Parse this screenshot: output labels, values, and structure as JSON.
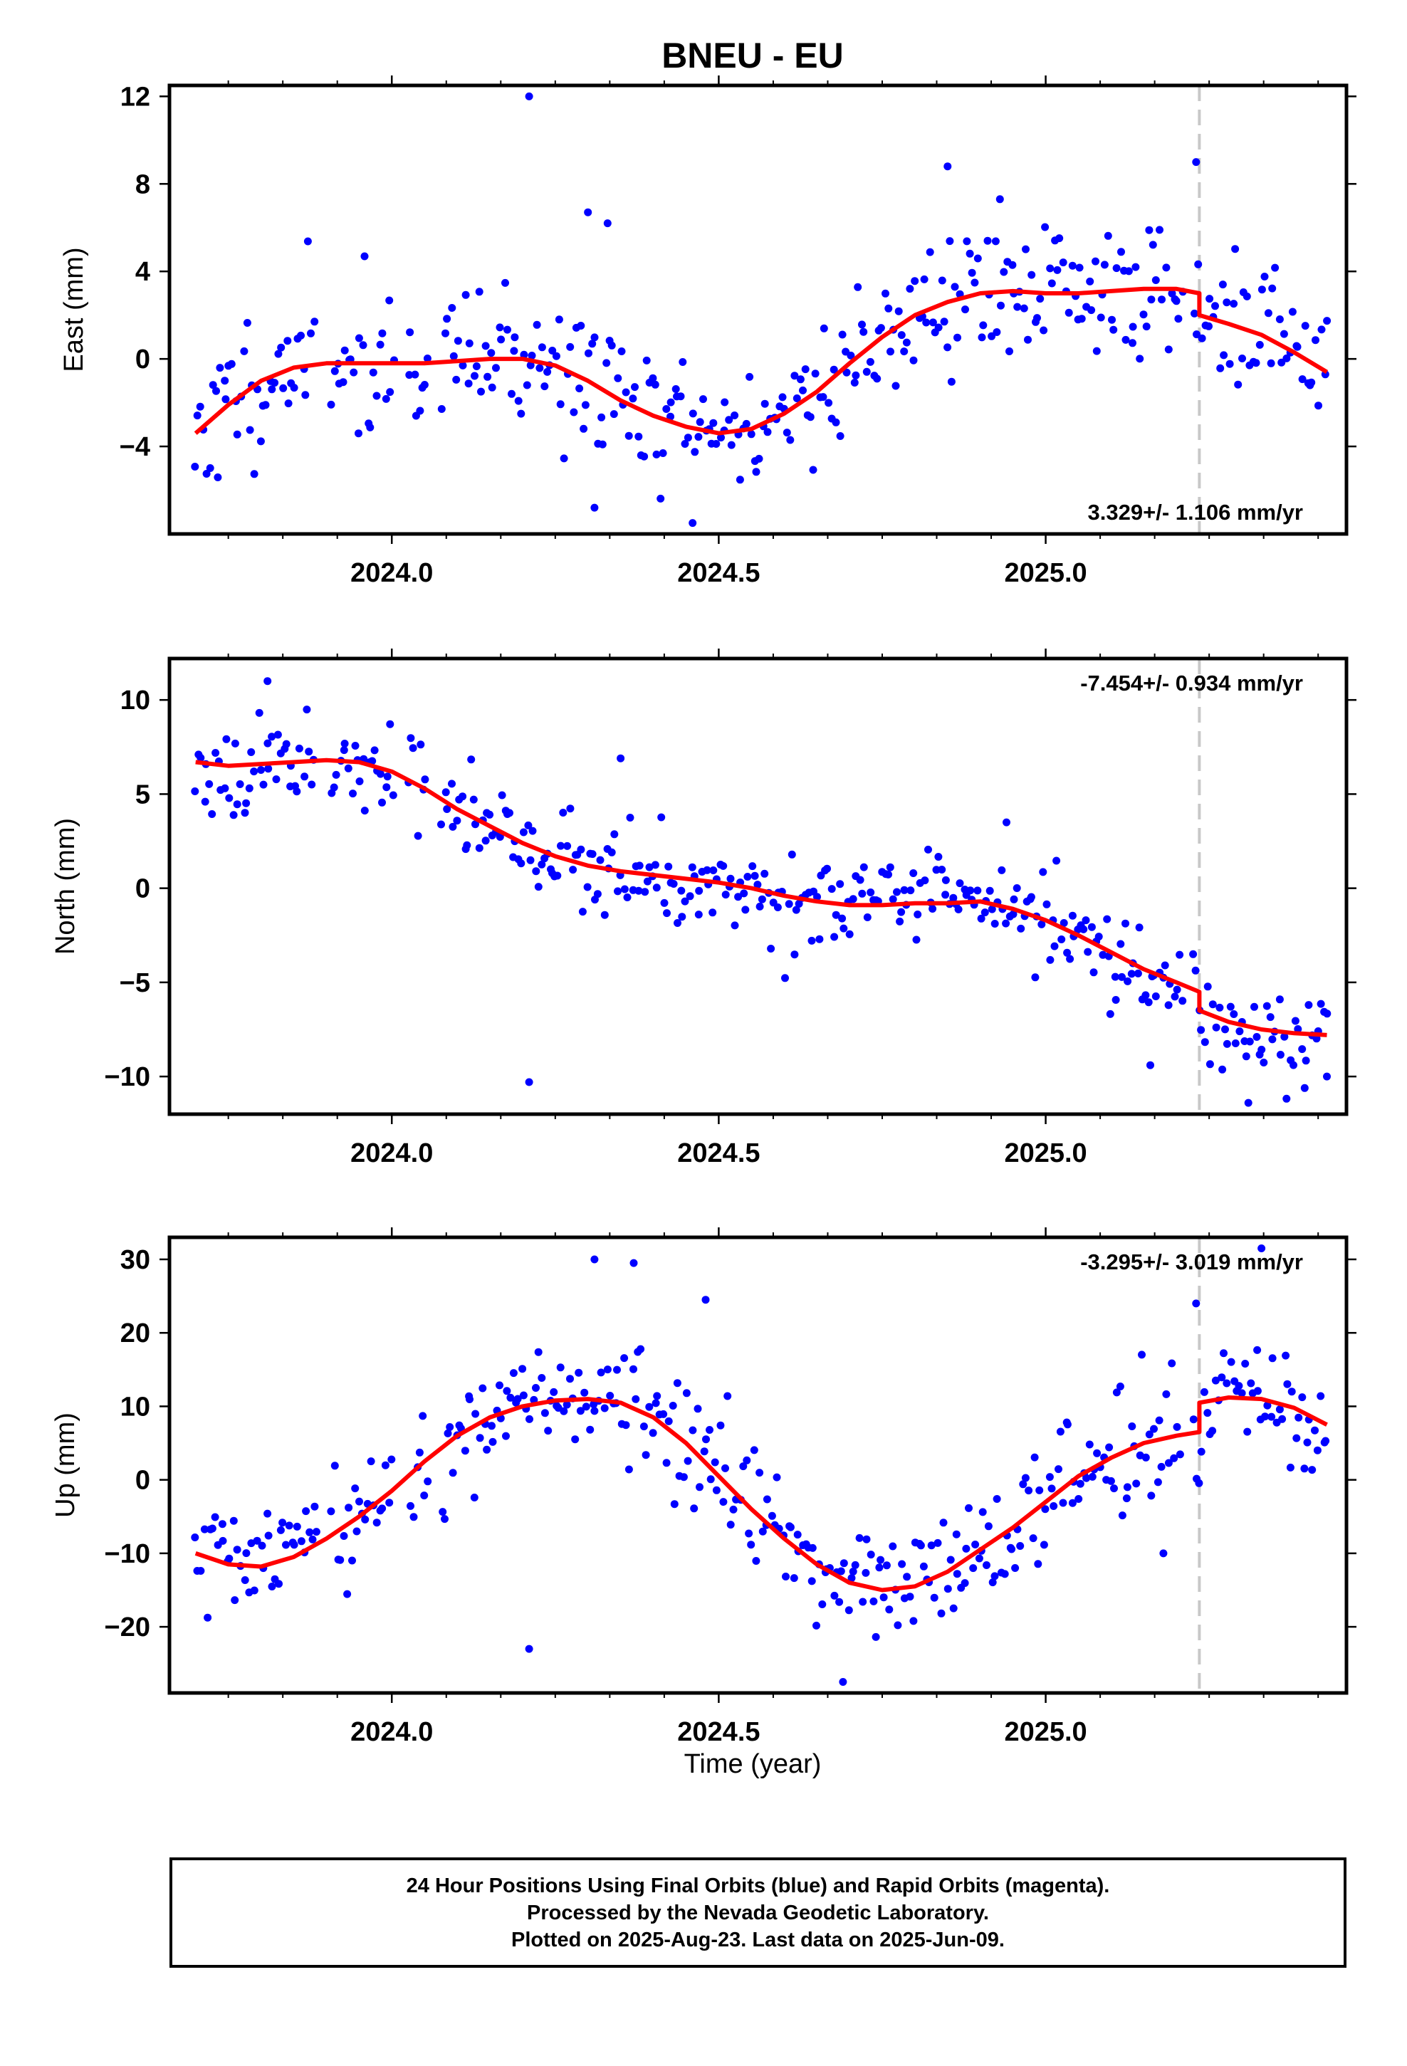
{
  "title": "BNEU - EU",
  "xlabel": "Time (year)",
  "colors": {
    "final_orbits": "#0000ff",
    "model": "#ff0000",
    "offset_line": "#c8c8c8",
    "frame": "#000000"
  },
  "caption": [
    "24 Hour Positions Using Final Orbits (blue) and Rapid Orbits (magenta).",
    "Processed by the Nevada Geodetic Laboratory.",
    "Plotted on 2025-Aug-23. Last data on 2025-Jun-09."
  ],
  "chart_data": [
    {
      "type": "scatter",
      "component": "east",
      "ylabel": "East (mm)",
      "rate_label": "3.329+/- 1.106 mm/yr",
      "rate_position": "bottom-right",
      "xlim": [
        2023.66,
        2025.46
      ],
      "ylim": [
        -8,
        12.5
      ],
      "xticks": [
        2024.0,
        2024.5,
        2025.0
      ],
      "xtick_labels": [
        "2024.0",
        "2024.5",
        "2025.0"
      ],
      "yticks": [
        -4,
        0,
        4,
        8,
        12
      ],
      "ytick_labels": [
        "−4",
        "0",
        "4",
        "8",
        "12"
      ],
      "offset_epoch": 2025.235,
      "model_x": [
        2023.7,
        2023.75,
        2023.8,
        2023.85,
        2023.9,
        2023.95,
        2024.0,
        2024.05,
        2024.1,
        2024.15,
        2024.2,
        2024.25,
        2024.3,
        2024.35,
        2024.4,
        2024.45,
        2024.5,
        2024.55,
        2024.6,
        2024.65,
        2024.7,
        2024.75,
        2024.8,
        2024.85,
        2024.9,
        2024.95,
        2025.0,
        2025.05,
        2025.1,
        2025.15,
        2025.2,
        2025.235,
        2025.235,
        2025.28,
        2025.33,
        2025.38,
        2025.43
      ],
      "model_y": [
        -3.4,
        -2.1,
        -1.0,
        -0.4,
        -0.2,
        -0.2,
        -0.2,
        -0.2,
        -0.1,
        0.0,
        0.0,
        -0.3,
        -1.0,
        -1.9,
        -2.6,
        -3.1,
        -3.4,
        -3.2,
        -2.5,
        -1.5,
        -0.2,
        1.0,
        2.0,
        2.6,
        3.0,
        3.1,
        3.0,
        3.0,
        3.1,
        3.2,
        3.2,
        3.0,
        2.0,
        1.6,
        1.1,
        0.3,
        -0.6
      ],
      "points": {
        "seed": 11,
        "sigma": 1.6,
        "count": 400,
        "outliers_x": [
          2024.21,
          2024.3,
          2024.33,
          2024.85,
          2024.93,
          2025.23,
          2024.46,
          2024.31
        ],
        "outliers_y": [
          12.0,
          6.7,
          6.2,
          8.8,
          7.3,
          9.0,
          -7.5,
          -6.8
        ]
      }
    },
    {
      "type": "scatter",
      "component": "north",
      "ylabel": "North (mm)",
      "rate_label": "-7.454+/- 0.934 mm/yr",
      "rate_position": "top-right",
      "xlim": [
        2023.66,
        2025.46
      ],
      "ylim": [
        -12,
        12.2
      ],
      "xticks": [
        2024.0,
        2024.5,
        2025.0
      ],
      "xtick_labels": [
        "2024.0",
        "2024.5",
        "2025.0"
      ],
      "yticks": [
        -10,
        -5,
        0,
        5,
        10
      ],
      "ytick_labels": [
        "−10",
        "−5",
        "0",
        "5",
        "10"
      ],
      "offset_epoch": 2025.235,
      "model_x": [
        2023.7,
        2023.75,
        2023.8,
        2023.85,
        2023.9,
        2023.95,
        2024.0,
        2024.05,
        2024.1,
        2024.15,
        2024.2,
        2024.25,
        2024.3,
        2024.35,
        2024.4,
        2024.45,
        2024.5,
        2024.55,
        2024.6,
        2024.65,
        2024.7,
        2024.75,
        2024.8,
        2024.85,
        2024.9,
        2024.95,
        2025.0,
        2025.05,
        2025.1,
        2025.15,
        2025.2,
        2025.235,
        2025.235,
        2025.28,
        2025.33,
        2025.38,
        2025.43
      ],
      "model_y": [
        6.7,
        6.5,
        6.6,
        6.7,
        6.8,
        6.7,
        6.2,
        5.3,
        4.2,
        3.3,
        2.4,
        1.7,
        1.2,
        0.9,
        0.7,
        0.5,
        0.3,
        0.0,
        -0.4,
        -0.7,
        -0.9,
        -0.9,
        -0.8,
        -0.8,
        -0.7,
        -1.1,
        -1.7,
        -2.5,
        -3.4,
        -4.3,
        -5.0,
        -5.5,
        -6.5,
        -7.1,
        -7.5,
        -7.7,
        -7.8
      ],
      "points": {
        "seed": 23,
        "sigma": 1.2,
        "count": 400,
        "outliers_x": [
          2023.81,
          2024.21,
          2024.35,
          2025.31,
          2025.43,
          2025.16,
          2024.94
        ],
        "outliers_y": [
          11.0,
          -10.3,
          6.9,
          -11.4,
          -10.0,
          -9.4,
          3.5
        ]
      }
    },
    {
      "type": "scatter",
      "component": "up",
      "ylabel": "Up (mm)",
      "rate_label": "-3.295+/- 3.019 mm/yr",
      "rate_position": "top-right",
      "xlim": [
        2023.66,
        2025.46
      ],
      "ylim": [
        -29,
        33
      ],
      "xticks": [
        2024.0,
        2024.5,
        2025.0
      ],
      "xtick_labels": [
        "2024.0",
        "2024.5",
        "2025.0"
      ],
      "yticks": [
        -20,
        -10,
        0,
        10,
        20,
        30
      ],
      "ytick_labels": [
        "−20",
        "−10",
        "0",
        "10",
        "20",
        "30"
      ],
      "offset_epoch": 2025.235,
      "model_x": [
        2023.7,
        2023.75,
        2023.8,
        2023.85,
        2023.9,
        2023.95,
        2024.0,
        2024.05,
        2024.1,
        2024.15,
        2024.2,
        2024.25,
        2024.3,
        2024.35,
        2024.4,
        2024.45,
        2024.5,
        2024.55,
        2024.6,
        2024.65,
        2024.7,
        2024.75,
        2024.8,
        2024.85,
        2024.9,
        2024.95,
        2025.0,
        2025.05,
        2025.1,
        2025.15,
        2025.2,
        2025.235,
        2025.235,
        2025.28,
        2025.33,
        2025.38,
        2025.43
      ],
      "model_y": [
        -10,
        -11.5,
        -11.8,
        -10.5,
        -8,
        -5,
        -1.5,
        2.5,
        6,
        8.5,
        10,
        10.8,
        11,
        10.5,
        8.5,
        5,
        0.5,
        -4,
        -8,
        -11.5,
        -14,
        -15,
        -14.5,
        -12.5,
        -9.5,
        -6.5,
        -3,
        0.5,
        3,
        5,
        6,
        6.5,
        10.5,
        11.2,
        11,
        9.8,
        7.5
      ],
      "points": {
        "seed": 37,
        "sigma": 4.0,
        "count": 400,
        "outliers_x": [
          2024.21,
          2024.48,
          2024.31,
          2024.37,
          2025.33,
          2025.23,
          2025.18,
          2024.69
        ],
        "outliers_y": [
          -23,
          24.5,
          30,
          29.5,
          31.5,
          24,
          -10,
          -27.5
        ]
      }
    }
  ]
}
